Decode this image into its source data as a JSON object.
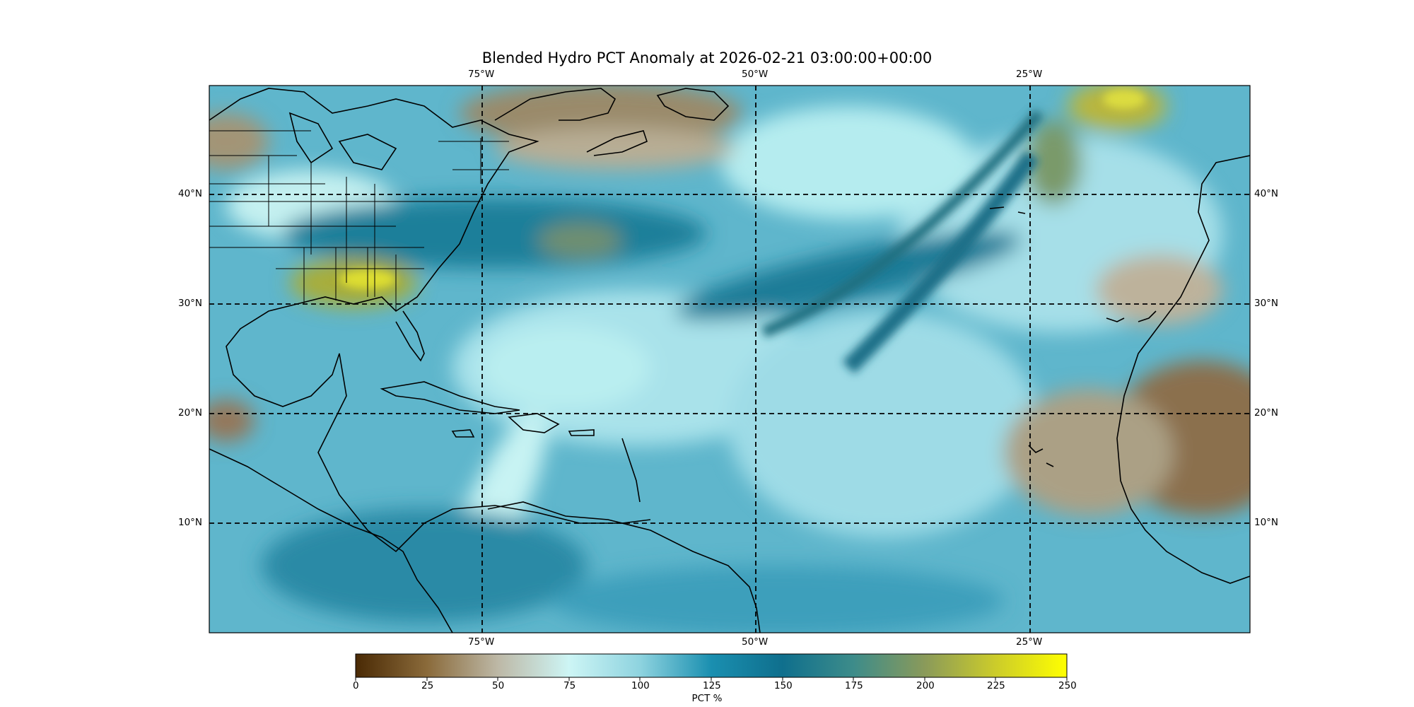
{
  "title": "Blended Hydro PCT Anomaly at 2026-02-21 03:00:00+00:00",
  "map": {
    "lon_ticks": [
      "75°W",
      "50°W",
      "25°W"
    ],
    "lat_ticks": [
      "40°N",
      "30°N",
      "20°N",
      "10°N"
    ],
    "gridlines": "dashed",
    "projection": "PlateCarree"
  },
  "colorbar": {
    "label": "PCT %",
    "ticks": [
      "0",
      "25",
      "50",
      "75",
      "100",
      "125",
      "150",
      "175",
      "200",
      "225",
      "250"
    ],
    "range": [
      0,
      250
    ],
    "colormap": [
      "#4a2a05",
      "#8a6a3a",
      "#bdb8a6",
      "#cdf5f5",
      "#8ed3df",
      "#2a9ab5",
      "#0f6f8d",
      "#3d8c8a",
      "#8a9a5a",
      "#cccc2a",
      "#ffff00"
    ]
  }
}
